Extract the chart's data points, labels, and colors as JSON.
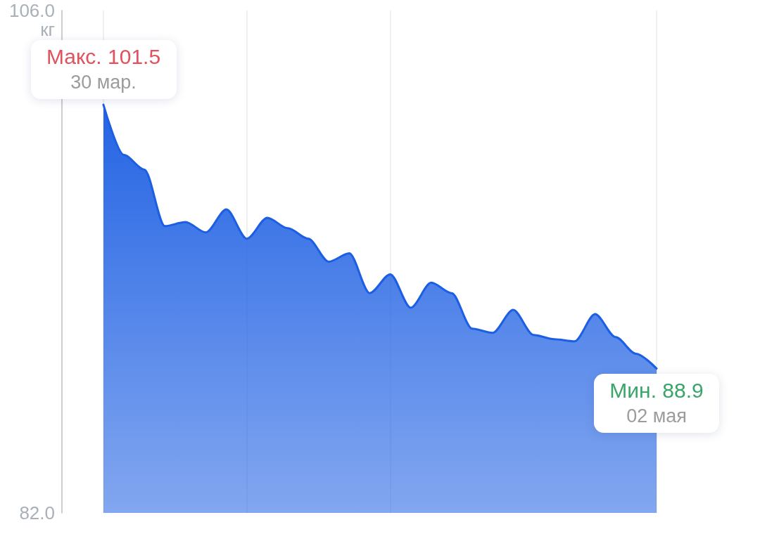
{
  "chart_data": {
    "type": "area",
    "ylabel": "кг",
    "categories": [
      null,
      null,
      null,
      null,
      null,
      null,
      null,
      null,
      null,
      null,
      null,
      null,
      null,
      null,
      null,
      null,
      null,
      null,
      null,
      null,
      null,
      null,
      null,
      null,
      null,
      null,
      null,
      null
    ],
    "values": [
      101.5,
      99.1,
      98.4,
      95.7,
      95.9,
      95.4,
      96.5,
      95.1,
      96.1,
      95.6,
      95.1,
      94.0,
      94.4,
      92.5,
      93.4,
      91.8,
      93.0,
      92.5,
      90.8,
      90.6,
      91.7,
      90.5,
      90.3,
      90.2,
      91.5,
      90.4,
      89.6,
      88.9
    ],
    "color": "#1d5fe3",
    "ylim": [
      82,
      106
    ],
    "yticks": [
      {
        "value": 82,
        "label": "82.0"
      },
      {
        "value": 106,
        "label": "106.0"
      }
    ],
    "grid": "x",
    "annotations": [
      {
        "text": "Макс. 101.5\n30 мар.",
        "y": 101.5
      },
      {
        "text": "Мин. 88.9\n02 мая",
        "y": 88.9
      }
    ]
  }
}
